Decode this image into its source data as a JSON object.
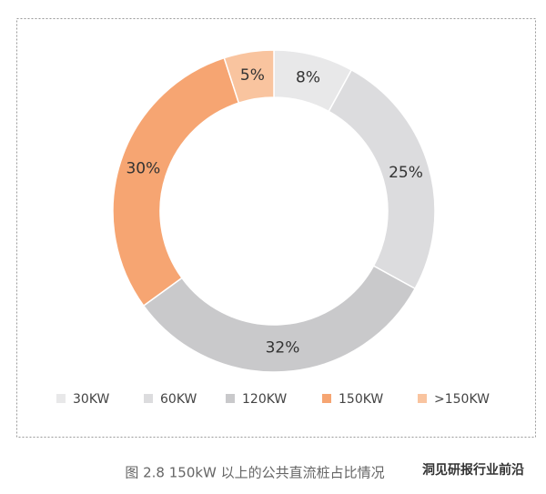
{
  "chart_data": {
    "type": "donut",
    "categories": [
      "30KW",
      "60KW",
      "120KW",
      "150KW",
      ">150KW"
    ],
    "values": [
      8,
      25,
      32,
      30,
      5
    ],
    "value_labels": [
      "8%",
      "25%",
      "32%",
      "30%",
      "5%"
    ],
    "colors": [
      "#e8e8e9",
      "#dcdcde",
      "#c9c9cb",
      "#f6a572",
      "#f9c49f"
    ],
    "caption": "图 2.8 150kW 以上的公共直流桩占比情况",
    "watermark": "洞见研报行业前沿"
  }
}
